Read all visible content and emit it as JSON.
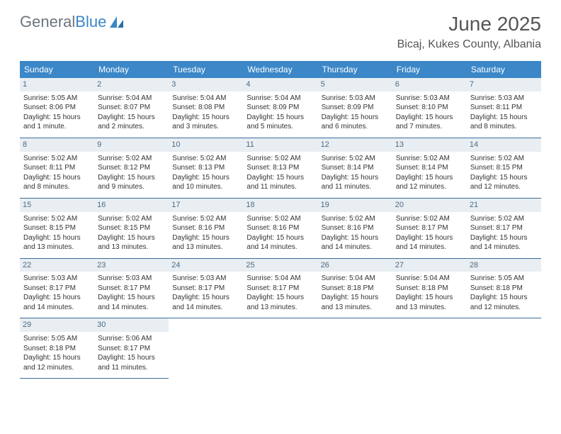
{
  "logo": {
    "word1": "General",
    "word2": "Blue",
    "color_gray": "#6c757d",
    "color_blue": "#3b87c8"
  },
  "title": "June 2025",
  "location": "Bicaj, Kukes County, Albania",
  "weekdays": [
    "Sunday",
    "Monday",
    "Tuesday",
    "Wednesday",
    "Thursday",
    "Friday",
    "Saturday"
  ],
  "colors": {
    "header_bg": "#3b87c8",
    "header_text": "#ffffff",
    "daynum_bg": "#e9eef2",
    "daynum_text": "#4a6b86",
    "border": "#3b6d9c",
    "body_text": "#333333"
  },
  "font": {
    "family": "Arial",
    "day_body_size": 10,
    "weekday_size": 12,
    "title_size": 28,
    "location_size": 16
  },
  "days": [
    {
      "n": "1",
      "sr": "Sunrise: 5:05 AM",
      "ss": "Sunset: 8:06 PM",
      "d1": "Daylight: 15 hours",
      "d2": "and 1 minute."
    },
    {
      "n": "2",
      "sr": "Sunrise: 5:04 AM",
      "ss": "Sunset: 8:07 PM",
      "d1": "Daylight: 15 hours",
      "d2": "and 2 minutes."
    },
    {
      "n": "3",
      "sr": "Sunrise: 5:04 AM",
      "ss": "Sunset: 8:08 PM",
      "d1": "Daylight: 15 hours",
      "d2": "and 3 minutes."
    },
    {
      "n": "4",
      "sr": "Sunrise: 5:04 AM",
      "ss": "Sunset: 8:09 PM",
      "d1": "Daylight: 15 hours",
      "d2": "and 5 minutes."
    },
    {
      "n": "5",
      "sr": "Sunrise: 5:03 AM",
      "ss": "Sunset: 8:09 PM",
      "d1": "Daylight: 15 hours",
      "d2": "and 6 minutes."
    },
    {
      "n": "6",
      "sr": "Sunrise: 5:03 AM",
      "ss": "Sunset: 8:10 PM",
      "d1": "Daylight: 15 hours",
      "d2": "and 7 minutes."
    },
    {
      "n": "7",
      "sr": "Sunrise: 5:03 AM",
      "ss": "Sunset: 8:11 PM",
      "d1": "Daylight: 15 hours",
      "d2": "and 8 minutes."
    },
    {
      "n": "8",
      "sr": "Sunrise: 5:02 AM",
      "ss": "Sunset: 8:11 PM",
      "d1": "Daylight: 15 hours",
      "d2": "and 8 minutes."
    },
    {
      "n": "9",
      "sr": "Sunrise: 5:02 AM",
      "ss": "Sunset: 8:12 PM",
      "d1": "Daylight: 15 hours",
      "d2": "and 9 minutes."
    },
    {
      "n": "10",
      "sr": "Sunrise: 5:02 AM",
      "ss": "Sunset: 8:13 PM",
      "d1": "Daylight: 15 hours",
      "d2": "and 10 minutes."
    },
    {
      "n": "11",
      "sr": "Sunrise: 5:02 AM",
      "ss": "Sunset: 8:13 PM",
      "d1": "Daylight: 15 hours",
      "d2": "and 11 minutes."
    },
    {
      "n": "12",
      "sr": "Sunrise: 5:02 AM",
      "ss": "Sunset: 8:14 PM",
      "d1": "Daylight: 15 hours",
      "d2": "and 11 minutes."
    },
    {
      "n": "13",
      "sr": "Sunrise: 5:02 AM",
      "ss": "Sunset: 8:14 PM",
      "d1": "Daylight: 15 hours",
      "d2": "and 12 minutes."
    },
    {
      "n": "14",
      "sr": "Sunrise: 5:02 AM",
      "ss": "Sunset: 8:15 PM",
      "d1": "Daylight: 15 hours",
      "d2": "and 12 minutes."
    },
    {
      "n": "15",
      "sr": "Sunrise: 5:02 AM",
      "ss": "Sunset: 8:15 PM",
      "d1": "Daylight: 15 hours",
      "d2": "and 13 minutes."
    },
    {
      "n": "16",
      "sr": "Sunrise: 5:02 AM",
      "ss": "Sunset: 8:15 PM",
      "d1": "Daylight: 15 hours",
      "d2": "and 13 minutes."
    },
    {
      "n": "17",
      "sr": "Sunrise: 5:02 AM",
      "ss": "Sunset: 8:16 PM",
      "d1": "Daylight: 15 hours",
      "d2": "and 13 minutes."
    },
    {
      "n": "18",
      "sr": "Sunrise: 5:02 AM",
      "ss": "Sunset: 8:16 PM",
      "d1": "Daylight: 15 hours",
      "d2": "and 14 minutes."
    },
    {
      "n": "19",
      "sr": "Sunrise: 5:02 AM",
      "ss": "Sunset: 8:16 PM",
      "d1": "Daylight: 15 hours",
      "d2": "and 14 minutes."
    },
    {
      "n": "20",
      "sr": "Sunrise: 5:02 AM",
      "ss": "Sunset: 8:17 PM",
      "d1": "Daylight: 15 hours",
      "d2": "and 14 minutes."
    },
    {
      "n": "21",
      "sr": "Sunrise: 5:02 AM",
      "ss": "Sunset: 8:17 PM",
      "d1": "Daylight: 15 hours",
      "d2": "and 14 minutes."
    },
    {
      "n": "22",
      "sr": "Sunrise: 5:03 AM",
      "ss": "Sunset: 8:17 PM",
      "d1": "Daylight: 15 hours",
      "d2": "and 14 minutes."
    },
    {
      "n": "23",
      "sr": "Sunrise: 5:03 AM",
      "ss": "Sunset: 8:17 PM",
      "d1": "Daylight: 15 hours",
      "d2": "and 14 minutes."
    },
    {
      "n": "24",
      "sr": "Sunrise: 5:03 AM",
      "ss": "Sunset: 8:17 PM",
      "d1": "Daylight: 15 hours",
      "d2": "and 14 minutes."
    },
    {
      "n": "25",
      "sr": "Sunrise: 5:04 AM",
      "ss": "Sunset: 8:17 PM",
      "d1": "Daylight: 15 hours",
      "d2": "and 13 minutes."
    },
    {
      "n": "26",
      "sr": "Sunrise: 5:04 AM",
      "ss": "Sunset: 8:18 PM",
      "d1": "Daylight: 15 hours",
      "d2": "and 13 minutes."
    },
    {
      "n": "27",
      "sr": "Sunrise: 5:04 AM",
      "ss": "Sunset: 8:18 PM",
      "d1": "Daylight: 15 hours",
      "d2": "and 13 minutes."
    },
    {
      "n": "28",
      "sr": "Sunrise: 5:05 AM",
      "ss": "Sunset: 8:18 PM",
      "d1": "Daylight: 15 hours",
      "d2": "and 12 minutes."
    },
    {
      "n": "29",
      "sr": "Sunrise: 5:05 AM",
      "ss": "Sunset: 8:18 PM",
      "d1": "Daylight: 15 hours",
      "d2": "and 12 minutes."
    },
    {
      "n": "30",
      "sr": "Sunrise: 5:06 AM",
      "ss": "Sunset: 8:17 PM",
      "d1": "Daylight: 15 hours",
      "d2": "and 11 minutes."
    }
  ]
}
